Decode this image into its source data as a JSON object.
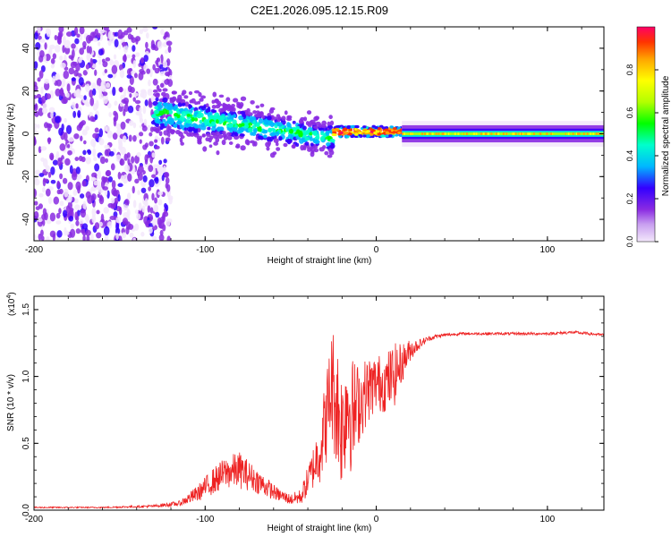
{
  "figure_title": "C2E1.2026.095.12.15.R09",
  "chart_data": [
    {
      "type": "heatmap",
      "name": "spectrogram",
      "xlabel": "Height of straight line (km)",
      "ylabel": "Frequency (Hz)",
      "xlim": [
        -200,
        133
      ],
      "ylim": [
        -50,
        50
      ],
      "xticks": [
        -200,
        -100,
        0,
        100
      ],
      "xtick_labels": [
        "-200",
        "-100",
        "0",
        "100"
      ],
      "yticks": [
        -40,
        -20,
        0,
        20,
        40
      ],
      "ytick_labels": [
        "-40",
        "-20",
        "0",
        "20",
        "40"
      ],
      "colorbar": {
        "label": "Normalized spectral amplitude",
        "range": [
          0,
          1
        ],
        "ticks": [
          0.0,
          0.2,
          0.4,
          0.6,
          0.8
        ],
        "tick_labels": [
          "0.0",
          "0.2",
          "0.4",
          "0.6",
          "0.8"
        ],
        "colors": [
          "#f3e8fb",
          "#8a2be2",
          "#3300ff",
          "#00b7ff",
          "#00ffcc",
          "#00ff00",
          "#b3ff00",
          "#ffff00",
          "#ffa500",
          "#ff3300",
          "#ff0066"
        ]
      },
      "regions": [
        {
          "x_range": [
            -200,
            -120
          ],
          "freq_spread": [
            -50,
            50
          ],
          "description": "broadband low-amplitude noise"
        },
        {
          "x_range": [
            -130,
            -25
          ],
          "freq_center_start": 10,
          "freq_center_end": -2,
          "description": "dispersed signal"
        },
        {
          "x_range": [
            -25,
            15
          ],
          "freq_center": 1,
          "description": "strong narrow signal"
        },
        {
          "x_range": [
            15,
            133
          ],
          "freq_center": 0,
          "description": "steady narrow carrier"
        }
      ]
    },
    {
      "type": "line",
      "name": "snr",
      "xlabel": "Height of straight line (km)",
      "ylabel": "SNR (10 * v/v)",
      "y_multiplier": "(x10",
      "y_multiplier_exp": "4",
      "y_multiplier_close": ")",
      "xlim": [
        -200,
        133
      ],
      "ylim": [
        0,
        1.6
      ],
      "xticks": [
        -200,
        -100,
        0,
        100
      ],
      "xtick_labels": [
        "-200",
        "-100",
        "0",
        "100"
      ],
      "yticks": [
        0.0,
        0.5,
        1.0,
        1.5
      ],
      "ytick_labels": [
        "0.0",
        "0.5",
        "1.0",
        "1.5"
      ],
      "series": [
        {
          "name": "SNR",
          "color": "#ee2222",
          "x": [
            -200,
            -160,
            -130,
            -115,
            -105,
            -95,
            -88,
            -80,
            -72,
            -65,
            -58,
            -50,
            -44,
            -38,
            -33,
            -29,
            -26,
            -23,
            -20,
            -17,
            -14,
            -10,
            -5,
            0,
            5,
            10,
            15,
            20,
            25,
            30,
            35,
            40,
            50,
            60,
            80,
            100,
            115,
            133
          ],
          "y": [
            0.02,
            0.02,
            0.03,
            0.05,
            0.12,
            0.22,
            0.28,
            0.3,
            0.24,
            0.18,
            0.12,
            0.08,
            0.1,
            0.28,
            0.45,
            0.7,
            0.95,
            0.8,
            0.6,
            0.85,
            0.7,
            0.8,
            0.9,
            0.95,
            0.95,
            1.0,
            1.1,
            1.2,
            1.24,
            1.28,
            1.3,
            1.31,
            1.32,
            1.32,
            1.32,
            1.32,
            1.33,
            1.31
          ],
          "noise_amplitude": [
            0.005,
            0.005,
            0.01,
            0.02,
            0.06,
            0.1,
            0.12,
            0.14,
            0.1,
            0.08,
            0.05,
            0.04,
            0.06,
            0.14,
            0.25,
            0.35,
            0.45,
            0.5,
            0.45,
            0.5,
            0.45,
            0.3,
            0.25,
            0.22,
            0.22,
            0.25,
            0.15,
            0.08,
            0.04,
            0.02,
            0.015,
            0.012,
            0.01,
            0.01,
            0.01,
            0.01,
            0.012,
            0.01
          ]
        }
      ]
    }
  ]
}
